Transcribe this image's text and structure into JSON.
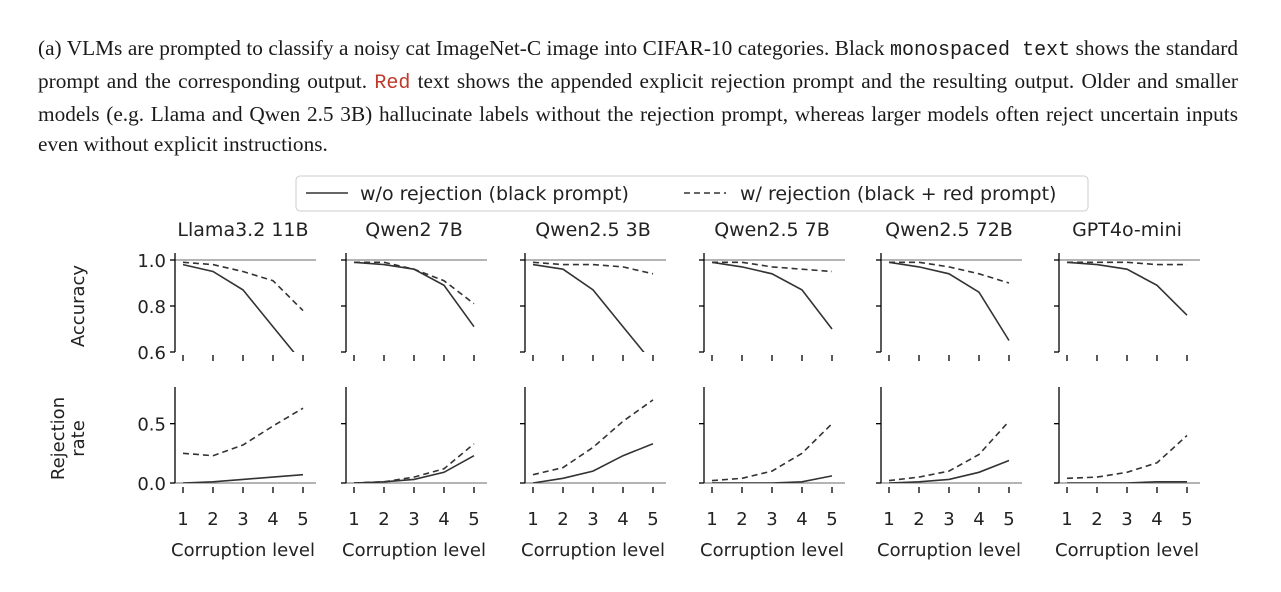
{
  "caption": {
    "part1": "(a) VLMs are prompted to classify a noisy cat ImageNet-C image into CIFAR-10 categories. Black ",
    "mono1": "monospaced text",
    "part2": " shows the standard prompt and the corresponding output. ",
    "mono2": "Red",
    "part3": " text shows the appended explicit rejection prompt and the resulting output. Older and smaller models (e.g. Llama and Qwen 2.5 3B) hallucinate labels without the rejection prompt, whereas larger models often reject uncertain inputs even without explicit instructions."
  },
  "legend": {
    "solid_label": "w/o rejection (black prompt)",
    "dashed_label": "w/ rejection (black + red prompt)"
  },
  "colors": {
    "line": "#333333",
    "red_text": "#c0392b",
    "axis": "#000000",
    "hline": "#888888"
  },
  "chart_data": {
    "type": "line",
    "x": [
      1,
      2,
      3,
      4,
      5
    ],
    "xlabel": "Corruption level",
    "rows": [
      {
        "key": "accuracy",
        "ylabel": [
          "Accuracy"
        ],
        "ylim": [
          0.6,
          1.0
        ],
        "yticks": [
          "1.0",
          "0.8",
          "0.6"
        ],
        "ytick_values": [
          1.0,
          0.8,
          0.6
        ],
        "hline": 1.0
      },
      {
        "key": "rejection",
        "ylabel": [
          "Rejection",
          "rate"
        ],
        "ylim": [
          0.0,
          0.75
        ],
        "yticks": [
          "0.5",
          "0.0"
        ],
        "ytick_values": [
          0.5,
          0.0
        ],
        "hline": 0.0
      }
    ],
    "series_names": [
      "w/o rejection (black prompt)",
      "w/ rejection (black + red prompt)"
    ],
    "panels": [
      {
        "title": "Llama3.2 11B",
        "accuracy": {
          "without": [
            0.98,
            0.95,
            0.87,
            0.71,
            0.55
          ],
          "with": [
            0.99,
            0.98,
            0.95,
            0.91,
            0.78
          ]
        },
        "rejection": {
          "without": [
            0.0,
            0.01,
            0.03,
            0.05,
            0.07
          ],
          "with": [
            0.25,
            0.23,
            0.32,
            0.48,
            0.63
          ]
        }
      },
      {
        "title": "Qwen2 7B",
        "accuracy": {
          "without": [
            0.99,
            0.98,
            0.96,
            0.89,
            0.71
          ],
          "with": [
            0.99,
            0.99,
            0.96,
            0.91,
            0.81
          ]
        },
        "rejection": {
          "without": [
            0.0,
            0.01,
            0.03,
            0.09,
            0.23
          ],
          "with": [
            0.0,
            0.01,
            0.05,
            0.12,
            0.33
          ]
        }
      },
      {
        "title": "Qwen2.5 3B",
        "accuracy": {
          "without": [
            0.98,
            0.96,
            0.87,
            0.71,
            0.55
          ],
          "with": [
            0.99,
            0.98,
            0.98,
            0.97,
            0.94
          ]
        },
        "rejection": {
          "without": [
            0.0,
            0.04,
            0.1,
            0.23,
            0.33
          ],
          "with": [
            0.07,
            0.13,
            0.3,
            0.52,
            0.7
          ]
        }
      },
      {
        "title": "Qwen2.5 7B",
        "accuracy": {
          "without": [
            0.99,
            0.97,
            0.94,
            0.87,
            0.7
          ],
          "with": [
            0.99,
            0.99,
            0.97,
            0.96,
            0.95
          ]
        },
        "rejection": {
          "without": [
            0.0,
            0.0,
            0.0,
            0.01,
            0.06
          ],
          "with": [
            0.02,
            0.04,
            0.1,
            0.25,
            0.5
          ]
        }
      },
      {
        "title": "Qwen2.5 72B",
        "accuracy": {
          "without": [
            0.99,
            0.97,
            0.94,
            0.86,
            0.65
          ],
          "with": [
            0.99,
            0.99,
            0.97,
            0.94,
            0.9
          ]
        },
        "rejection": {
          "without": [
            0.0,
            0.01,
            0.03,
            0.09,
            0.19
          ],
          "with": [
            0.02,
            0.05,
            0.1,
            0.24,
            0.52
          ]
        }
      },
      {
        "title": "GPT4o-mini",
        "accuracy": {
          "without": [
            0.99,
            0.98,
            0.96,
            0.89,
            0.76
          ],
          "with": [
            0.99,
            0.99,
            0.99,
            0.98,
            0.98
          ]
        },
        "rejection": {
          "without": [
            0.0,
            0.0,
            0.0,
            0.01,
            0.01
          ],
          "with": [
            0.04,
            0.05,
            0.09,
            0.17,
            0.4
          ]
        }
      }
    ]
  }
}
